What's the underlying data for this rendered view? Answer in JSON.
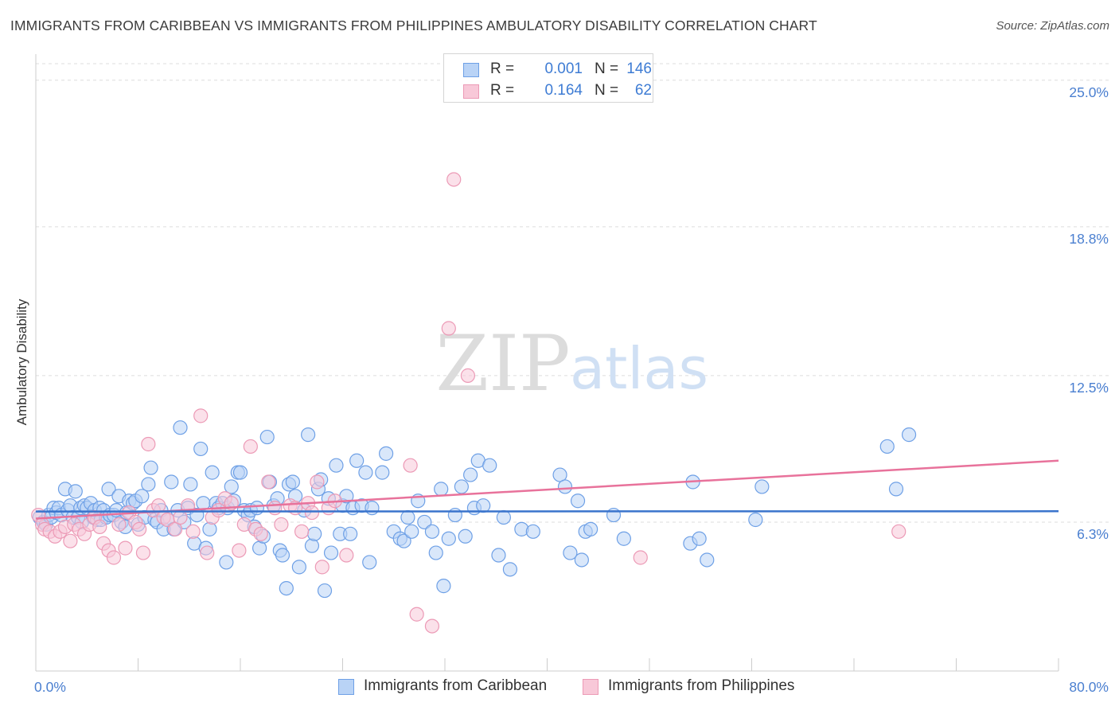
{
  "title": "IMMIGRANTS FROM CARIBBEAN VS IMMIGRANTS FROM PHILIPPINES AMBULATORY DISABILITY CORRELATION CHART",
  "source": "Source: ZipAtlas.com",
  "watermark": {
    "zip": "ZIP",
    "atlas": "atlas"
  },
  "legend": {
    "rows": [
      {
        "r_label": "R =",
        "r_value": "0.001",
        "n_label": "N =",
        "n_value": "146",
        "color": "#7aaaf0"
      },
      {
        "r_label": "R =",
        "r_value": "0.164",
        "n_label": "N =",
        "n_value": "62",
        "color": "#f0a0bb"
      }
    ]
  },
  "bottom_legend": {
    "caribbean": "Immigrants from Caribbean",
    "philippines": "Immigrants from Philippines"
  },
  "colors": {
    "caribbean_fill": "#b9d3f6",
    "caribbean_stroke": "#6ea0e6",
    "caribbean_line": "#3a74cc",
    "philippines_fill": "#f8c8d8",
    "philippines_stroke": "#ec9ab6",
    "philippines_line": "#e8729b",
    "tick_text": "#4a7fd0"
  },
  "chart_data": {
    "type": "scatter",
    "title": "IMMIGRANTS FROM CARIBBEAN VS IMMIGRANTS FROM PHILIPPINES AMBULATORY DISABILITY CORRELATION CHART",
    "xlabel": "",
    "ylabel": "Ambulatory Disability",
    "xlim": [
      0,
      80
    ],
    "ylim": [
      0,
      25.7
    ],
    "x_tick_labels": [
      "0.0%",
      "80.0%"
    ],
    "y_ticks": [
      6.3,
      12.5,
      18.8,
      25.0
    ],
    "y_tick_labels": [
      "6.3%",
      "12.5%",
      "18.8%",
      "25.0%"
    ],
    "grid": true,
    "series": [
      {
        "name": "Immigrants from Caribbean",
        "trend": {
          "x": [
            0,
            80
          ],
          "y": [
            6.75,
            6.76
          ]
        },
        "points": [
          [
            0.3,
            6.5
          ],
          [
            0.6,
            6.3
          ],
          [
            0.8,
            6.2
          ],
          [
            1.0,
            6.6
          ],
          [
            1.2,
            6.5
          ],
          [
            1.4,
            6.9
          ],
          [
            1.6,
            6.7
          ],
          [
            1.8,
            6.9
          ],
          [
            2.0,
            6.6
          ],
          [
            2.3,
            7.7
          ],
          [
            2.5,
            6.8
          ],
          [
            2.7,
            7.0
          ],
          [
            2.9,
            6.5
          ],
          [
            3.1,
            7.6
          ],
          [
            3.3,
            6.5
          ],
          [
            3.5,
            6.9
          ],
          [
            3.6,
            6.3
          ],
          [
            3.8,
            7.0
          ],
          [
            4.0,
            6.9
          ],
          [
            4.3,
            7.1
          ],
          [
            4.5,
            6.5
          ],
          [
            4.6,
            6.8
          ],
          [
            4.8,
            6.4
          ],
          [
            5.0,
            6.9
          ],
          [
            5.1,
            6.4
          ],
          [
            5.3,
            6.8
          ],
          [
            5.5,
            6.5
          ],
          [
            5.7,
            7.7
          ],
          [
            5.8,
            6.6
          ],
          [
            6.1,
            6.6
          ],
          [
            6.3,
            6.8
          ],
          [
            6.5,
            7.4
          ],
          [
            6.7,
            6.3
          ],
          [
            7.0,
            6.1
          ],
          [
            7.1,
            6.7
          ],
          [
            7.3,
            7.2
          ],
          [
            7.6,
            7.1
          ],
          [
            7.8,
            7.2
          ],
          [
            8.0,
            6.2
          ],
          [
            8.3,
            7.4
          ],
          [
            8.5,
            6.5
          ],
          [
            8.8,
            7.9
          ],
          [
            9.0,
            8.6
          ],
          [
            9.3,
            6.4
          ],
          [
            9.5,
            6.3
          ],
          [
            9.8,
            6.8
          ],
          [
            10.0,
            6.0
          ],
          [
            10.3,
            6.4
          ],
          [
            10.6,
            8.0
          ],
          [
            10.8,
            6.0
          ],
          [
            11.1,
            6.8
          ],
          [
            11.3,
            10.3
          ],
          [
            11.6,
            6.3
          ],
          [
            11.9,
            6.9
          ],
          [
            12.1,
            7.9
          ],
          [
            12.4,
            5.4
          ],
          [
            12.6,
            6.6
          ],
          [
            12.9,
            9.4
          ],
          [
            13.1,
            7.1
          ],
          [
            13.3,
            5.2
          ],
          [
            13.6,
            6.0
          ],
          [
            13.8,
            8.4
          ],
          [
            14.1,
            7.1
          ],
          [
            14.3,
            6.9
          ],
          [
            14.6,
            7.1
          ],
          [
            14.9,
            4.6
          ],
          [
            15.0,
            6.9
          ],
          [
            15.3,
            7.8
          ],
          [
            15.5,
            7.2
          ],
          [
            15.8,
            8.4
          ],
          [
            16.0,
            8.4
          ],
          [
            16.3,
            6.8
          ],
          [
            16.6,
            6.6
          ],
          [
            16.8,
            6.8
          ],
          [
            17.1,
            6.1
          ],
          [
            17.3,
            6.9
          ],
          [
            17.5,
            5.2
          ],
          [
            17.8,
            5.7
          ],
          [
            18.1,
            9.9
          ],
          [
            18.3,
            8.0
          ],
          [
            18.6,
            7.0
          ],
          [
            18.9,
            7.3
          ],
          [
            19.1,
            5.1
          ],
          [
            19.3,
            4.9
          ],
          [
            19.6,
            3.5
          ],
          [
            19.8,
            7.9
          ],
          [
            20.1,
            8.0
          ],
          [
            20.3,
            7.4
          ],
          [
            20.6,
            4.4
          ],
          [
            21.0,
            6.8
          ],
          [
            21.3,
            10.0
          ],
          [
            21.6,
            5.3
          ],
          [
            21.8,
            5.8
          ],
          [
            22.1,
            7.7
          ],
          [
            22.3,
            8.1
          ],
          [
            22.6,
            3.4
          ],
          [
            22.9,
            7.3
          ],
          [
            23.1,
            5.0
          ],
          [
            23.5,
            8.7
          ],
          [
            23.8,
            5.8
          ],
          [
            24.0,
            7.0
          ],
          [
            24.3,
            7.4
          ],
          [
            24.6,
            5.8
          ],
          [
            24.8,
            6.9
          ],
          [
            25.1,
            8.9
          ],
          [
            25.5,
            7.0
          ],
          [
            25.8,
            8.4
          ],
          [
            26.1,
            4.6
          ],
          [
            26.3,
            6.9
          ],
          [
            27.1,
            8.4
          ],
          [
            27.4,
            9.2
          ],
          [
            28.0,
            5.9
          ],
          [
            28.5,
            5.6
          ],
          [
            28.8,
            5.5
          ],
          [
            29.1,
            6.5
          ],
          [
            29.4,
            5.9
          ],
          [
            29.9,
            7.2
          ],
          [
            30.4,
            6.3
          ],
          [
            31.0,
            5.9
          ],
          [
            31.3,
            5.0
          ],
          [
            31.7,
            7.7
          ],
          [
            31.9,
            3.6
          ],
          [
            32.3,
            5.6
          ],
          [
            32.8,
            6.6
          ],
          [
            33.3,
            7.8
          ],
          [
            33.6,
            5.7
          ],
          [
            34.0,
            8.3
          ],
          [
            34.3,
            6.9
          ],
          [
            34.6,
            8.9
          ],
          [
            35.0,
            7.0
          ],
          [
            35.5,
            8.7
          ],
          [
            36.2,
            4.9
          ],
          [
            36.6,
            6.5
          ],
          [
            37.1,
            4.3
          ],
          [
            38.0,
            6.0
          ],
          [
            38.9,
            5.9
          ],
          [
            41.0,
            8.3
          ],
          [
            41.4,
            7.8
          ],
          [
            41.8,
            5.0
          ],
          [
            42.4,
            7.2
          ],
          [
            42.7,
            4.7
          ],
          [
            43.0,
            5.9
          ],
          [
            43.4,
            6.0
          ],
          [
            45.2,
            6.6
          ],
          [
            46.0,
            5.6
          ],
          [
            51.2,
            5.4
          ],
          [
            51.4,
            8.0
          ],
          [
            51.9,
            5.6
          ],
          [
            52.5,
            4.7
          ],
          [
            56.3,
            6.4
          ],
          [
            56.8,
            7.8
          ],
          [
            66.6,
            9.5
          ],
          [
            67.3,
            7.7
          ],
          [
            68.3,
            10.0
          ]
        ]
      },
      {
        "name": "Immigrants from Philippines",
        "trend": {
          "x": [
            0,
            80
          ],
          "y": [
            6.45,
            8.9
          ]
        },
        "points": [
          [
            0.2,
            6.6
          ],
          [
            0.5,
            6.2
          ],
          [
            0.7,
            6.0
          ],
          [
            1.1,
            5.9
          ],
          [
            1.5,
            5.7
          ],
          [
            1.9,
            5.9
          ],
          [
            2.3,
            6.1
          ],
          [
            2.7,
            5.5
          ],
          [
            3.0,
            6.2
          ],
          [
            3.4,
            6.0
          ],
          [
            3.8,
            5.8
          ],
          [
            4.2,
            6.2
          ],
          [
            4.6,
            6.5
          ],
          [
            5.0,
            6.1
          ],
          [
            5.3,
            5.4
          ],
          [
            5.7,
            5.1
          ],
          [
            6.1,
            4.8
          ],
          [
            6.5,
            6.2
          ],
          [
            7.0,
            5.2
          ],
          [
            7.3,
            6.7
          ],
          [
            7.8,
            6.3
          ],
          [
            8.1,
            6.0
          ],
          [
            8.4,
            5.0
          ],
          [
            8.8,
            9.6
          ],
          [
            9.2,
            6.8
          ],
          [
            9.6,
            7.0
          ],
          [
            10.0,
            6.5
          ],
          [
            10.3,
            6.4
          ],
          [
            10.9,
            6.0
          ],
          [
            11.3,
            6.5
          ],
          [
            11.9,
            7.0
          ],
          [
            12.3,
            5.9
          ],
          [
            12.9,
            10.8
          ],
          [
            13.4,
            5.0
          ],
          [
            13.8,
            6.5
          ],
          [
            14.3,
            6.8
          ],
          [
            14.8,
            7.3
          ],
          [
            15.3,
            7.1
          ],
          [
            15.9,
            5.1
          ],
          [
            16.3,
            6.2
          ],
          [
            16.8,
            9.5
          ],
          [
            17.2,
            6.0
          ],
          [
            17.6,
            5.8
          ],
          [
            18.2,
            8.0
          ],
          [
            18.7,
            6.9
          ],
          [
            19.2,
            6.2
          ],
          [
            19.9,
            7.0
          ],
          [
            20.3,
            6.9
          ],
          [
            20.8,
            5.9
          ],
          [
            21.3,
            7.1
          ],
          [
            21.6,
            6.7
          ],
          [
            22.0,
            8.0
          ],
          [
            22.4,
            4.4
          ],
          [
            22.9,
            6.9
          ],
          [
            23.4,
            7.2
          ],
          [
            24.3,
            4.9
          ],
          [
            29.3,
            8.7
          ],
          [
            29.8,
            2.4
          ],
          [
            31.0,
            1.9
          ],
          [
            32.3,
            14.5
          ],
          [
            32.7,
            20.8
          ],
          [
            33.8,
            12.5
          ],
          [
            47.3,
            4.8
          ],
          [
            67.5,
            5.9
          ]
        ]
      }
    ]
  }
}
